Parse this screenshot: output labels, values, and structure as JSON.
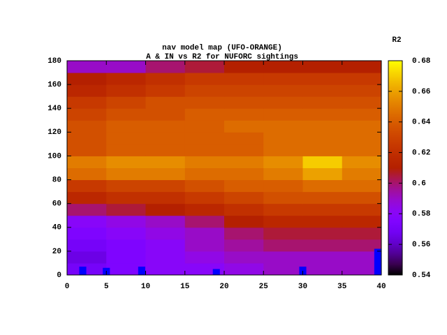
{
  "chart_data": {
    "type": "heatmap",
    "title": "nav model map (UFO-ORANGE)",
    "subtitle": "A & IN vs R2 for NUFORC sightings",
    "colorbar_label": "R2",
    "palette": "gnuplot-rgbformulae-7-5-15",
    "xbins": [
      0,
      5,
      10,
      15,
      20,
      25,
      30,
      35,
      40
    ],
    "ybins": [
      0,
      10,
      20,
      30,
      40,
      50,
      60,
      70,
      80,
      90,
      100,
      110,
      120,
      130,
      140,
      150,
      160,
      170,
      180
    ],
    "values": [
      [
        0.57,
        0.575,
        0.58,
        0.58,
        0.585,
        0.59,
        0.59,
        0.59
      ],
      [
        0.565,
        0.575,
        0.58,
        0.585,
        0.59,
        0.59,
        0.59,
        0.59
      ],
      [
        0.57,
        0.575,
        0.58,
        0.59,
        0.595,
        0.6,
        0.6,
        0.6
      ],
      [
        0.575,
        0.58,
        0.585,
        0.59,
        0.6,
        0.605,
        0.605,
        0.605
      ],
      [
        0.58,
        0.585,
        0.59,
        0.6,
        0.61,
        0.615,
        0.615,
        0.615
      ],
      [
        0.6,
        0.605,
        0.61,
        0.615,
        0.62,
        0.625,
        0.625,
        0.625
      ],
      [
        0.615,
        0.62,
        0.62,
        0.625,
        0.63,
        0.635,
        0.635,
        0.635
      ],
      [
        0.625,
        0.63,
        0.63,
        0.635,
        0.64,
        0.64,
        0.645,
        0.645
      ],
      [
        0.645,
        0.65,
        0.65,
        0.645,
        0.645,
        0.65,
        0.66,
        0.65
      ],
      [
        0.65,
        0.655,
        0.655,
        0.65,
        0.65,
        0.655,
        0.67,
        0.655
      ],
      [
        0.635,
        0.64,
        0.64,
        0.64,
        0.64,
        0.645,
        0.645,
        0.645
      ],
      [
        0.635,
        0.64,
        0.64,
        0.64,
        0.64,
        0.645,
        0.645,
        0.645
      ],
      [
        0.635,
        0.64,
        0.64,
        0.64,
        0.645,
        0.645,
        0.645,
        0.645
      ],
      [
        0.63,
        0.635,
        0.635,
        0.64,
        0.64,
        0.64,
        0.64,
        0.64
      ],
      [
        0.625,
        0.63,
        0.635,
        0.635,
        0.635,
        0.635,
        0.635,
        0.635
      ],
      [
        0.615,
        0.62,
        0.625,
        0.63,
        0.63,
        0.63,
        0.63,
        0.63
      ],
      [
        0.61,
        0.615,
        0.62,
        0.625,
        0.625,
        0.625,
        0.625,
        0.625
      ],
      [
        0.59,
        0.59,
        0.6,
        0.605,
        0.61,
        0.61,
        0.61,
        0.61
      ]
    ],
    "overlay": {
      "x": [
        2,
        5,
        9.5,
        19,
        30,
        40
      ],
      "values": [
        7,
        6,
        7,
        5,
        7,
        22
      ],
      "color": "#0000ff"
    },
    "xlim": [
      0,
      40
    ],
    "xticks": [
      0,
      5,
      10,
      15,
      20,
      25,
      30,
      35,
      40
    ],
    "ylim": [
      0,
      180
    ],
    "yticks": [
      0,
      20,
      40,
      60,
      80,
      100,
      120,
      140,
      160,
      180
    ],
    "zlim": [
      0.54,
      0.68
    ],
    "zticks": [
      0.54,
      0.56,
      0.58,
      0.6,
      0.62,
      0.64,
      0.66,
      0.68
    ]
  }
}
